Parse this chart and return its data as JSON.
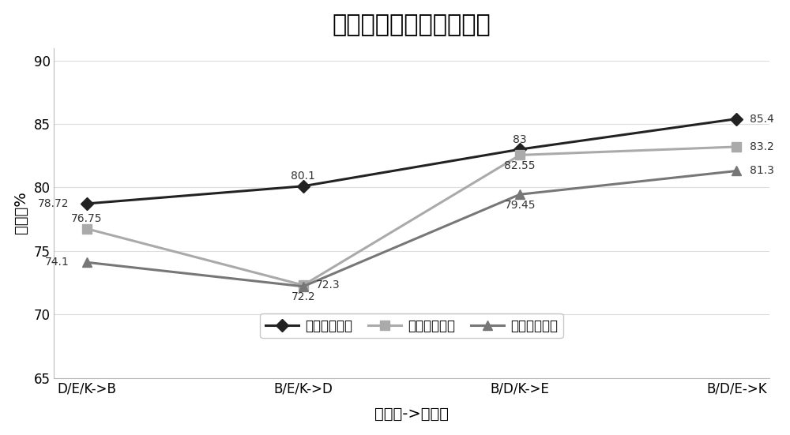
{
  "title": "集成迁移的情感分类结果",
  "xlabel": "多源域->目标域",
  "ylabel": "准确率%",
  "categories": [
    "D/E/K->B",
    "B/E/K->D",
    "B/D/K->E",
    "B/D/E->K"
  ],
  "series": [
    {
      "name": "所有特征结果",
      "values": [
        78.72,
        80.1,
        83,
        85.4
      ],
      "color": "#222222",
      "marker": "D",
      "linewidth": 2.2,
      "markersize": 8
    },
    {
      "name": "原始特征结果",
      "values": [
        76.75,
        72.3,
        82.55,
        83.2
      ],
      "color": "#aaaaaa",
      "marker": "s",
      "linewidth": 2.2,
      "markersize": 8
    },
    {
      "name": "映射特征结果",
      "values": [
        74.1,
        72.2,
        79.45,
        81.3
      ],
      "color": "#777777",
      "marker": "^",
      "linewidth": 2.2,
      "markersize": 9
    }
  ],
  "ylim": [
    65,
    91
  ],
  "yticks": [
    65,
    70,
    75,
    80,
    85,
    90
  ],
  "background_color": "#ffffff",
  "title_fontsize": 22,
  "label_fontsize": 14,
  "tick_fontsize": 12,
  "legend_fontsize": 12,
  "annotation_fontsize": 10
}
